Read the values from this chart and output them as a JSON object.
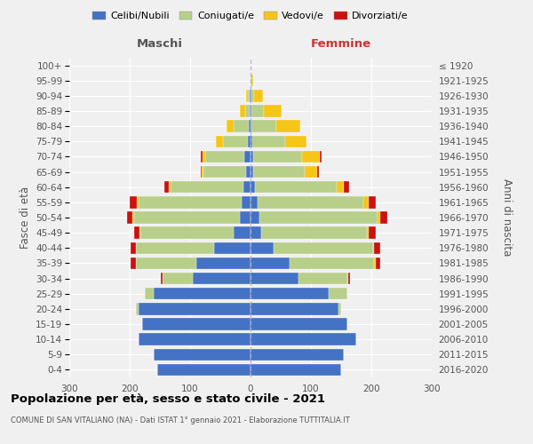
{
  "age_groups": [
    "0-4",
    "5-9",
    "10-14",
    "15-19",
    "20-24",
    "25-29",
    "30-34",
    "35-39",
    "40-44",
    "45-49",
    "50-54",
    "55-59",
    "60-64",
    "65-69",
    "70-74",
    "75-79",
    "80-84",
    "85-89",
    "90-94",
    "95-99",
    "100+"
  ],
  "birth_years": [
    "2016-2020",
    "2011-2015",
    "2006-2010",
    "2001-2005",
    "1996-2000",
    "1991-1995",
    "1986-1990",
    "1981-1985",
    "1976-1980",
    "1971-1975",
    "1966-1970",
    "1961-1965",
    "1956-1960",
    "1951-1955",
    "1946-1950",
    "1941-1945",
    "1936-1940",
    "1931-1935",
    "1926-1930",
    "1921-1925",
    "≤ 1920"
  ],
  "maschi": {
    "celibi": [
      155,
      160,
      185,
      180,
      185,
      160,
      95,
      90,
      60,
      28,
      18,
      15,
      12,
      8,
      10,
      5,
      3,
      1,
      2,
      0,
      0
    ],
    "coniugati": [
      0,
      0,
      0,
      0,
      5,
      15,
      50,
      100,
      130,
      155,
      175,
      170,
      120,
      70,
      65,
      40,
      25,
      8,
      3,
      0,
      0
    ],
    "vedovi": [
      0,
      0,
      0,
      0,
      0,
      0,
      0,
      0,
      0,
      1,
      2,
      3,
      3,
      3,
      5,
      12,
      12,
      8,
      2,
      0,
      0
    ],
    "divorziati": [
      0,
      0,
      0,
      0,
      0,
      0,
      3,
      8,
      8,
      8,
      10,
      12,
      8,
      2,
      3,
      0,
      0,
      0,
      0,
      0,
      0
    ]
  },
  "femmine": {
    "nubili": [
      150,
      155,
      175,
      160,
      145,
      130,
      80,
      65,
      38,
      18,
      15,
      12,
      8,
      5,
      5,
      3,
      2,
      2,
      1,
      0,
      0
    ],
    "coniugate": [
      0,
      0,
      0,
      0,
      5,
      30,
      80,
      140,
      165,
      175,
      195,
      175,
      135,
      85,
      80,
      55,
      40,
      20,
      5,
      2,
      0
    ],
    "vedove": [
      0,
      0,
      0,
      0,
      0,
      0,
      2,
      2,
      2,
      3,
      5,
      8,
      12,
      20,
      30,
      35,
      40,
      30,
      15,
      3,
      0
    ],
    "divorziate": [
      0,
      0,
      0,
      0,
      0,
      0,
      3,
      8,
      10,
      12,
      12,
      12,
      8,
      3,
      2,
      0,
      0,
      0,
      0,
      0,
      0
    ]
  },
  "colors": {
    "celibi": "#4472c4",
    "coniugati": "#b8cf8a",
    "vedovi": "#f5c518",
    "divorziati": "#cc1111"
  },
  "title": "Popolazione per età, sesso e stato civile - 2021",
  "subtitle": "COMUNE DI SAN VITALIANO (NA) - Dati ISTAT 1° gennaio 2021 - Elaborazione TUTTITALIA.IT",
  "xlabel_left": "Maschi",
  "xlabel_right": "Femmine",
  "ylabel_left": "Fasce di età",
  "ylabel_right": "Anni di nascita",
  "xlim": 300,
  "bg_color": "#f0f0f0",
  "legend_labels": [
    "Celibi/Nubili",
    "Coniugati/e",
    "Vedovi/e",
    "Divorziati/e"
  ]
}
